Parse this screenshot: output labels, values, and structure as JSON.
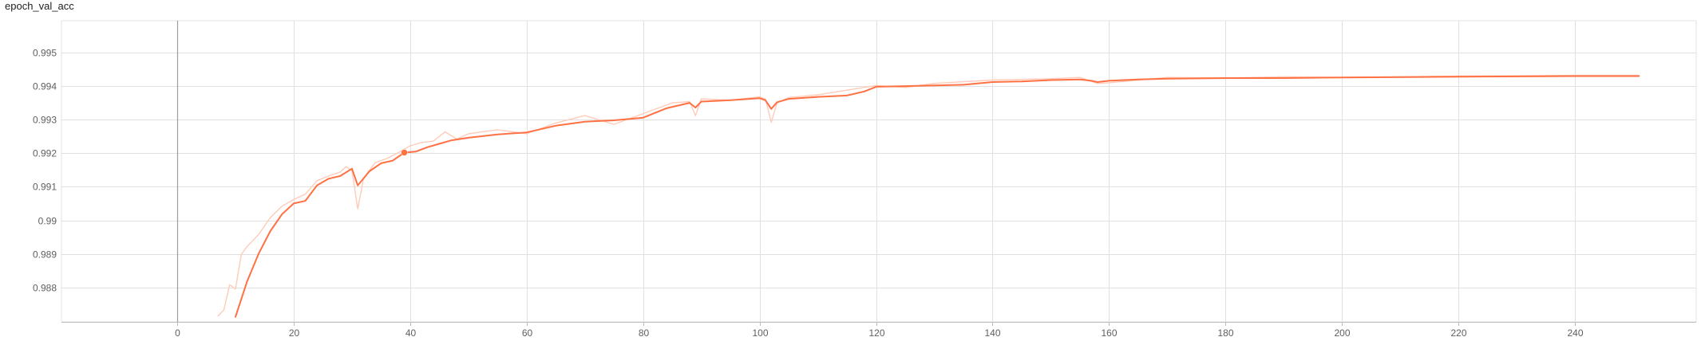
{
  "chart_data": {
    "type": "line",
    "title": "epoch_val_acc",
    "xlabel": "",
    "ylabel": "",
    "xlim": [
      -20,
      260
    ],
    "ylim": [
      0.9871,
      0.9964
    ],
    "x_ticks": [
      0,
      20,
      40,
      60,
      80,
      100,
      120,
      140,
      160,
      180,
      200,
      220,
      240
    ],
    "y_ticks": [
      0.988,
      0.989,
      0.99,
      0.991,
      0.992,
      0.993,
      0.994,
      0.995
    ],
    "x_tick_labels": [
      "0",
      "20",
      "40",
      "60",
      "80",
      "100",
      "120",
      "140",
      "160",
      "180",
      "200",
      "220",
      "240"
    ],
    "y_tick_labels": [
      "0.988",
      "0.989",
      "0.99",
      "0.991",
      "0.992",
      "0.993",
      "0.994",
      "0.995"
    ],
    "grid": true,
    "highlight_point": {
      "x": 39,
      "y": 0.99202
    },
    "series": [
      {
        "role": "smoothed",
        "color": "#ff7043",
        "x": [
          10,
          12,
          14,
          16,
          18,
          20,
          22,
          24,
          26,
          28,
          30,
          31,
          33,
          35,
          37,
          39,
          41,
          43,
          45,
          47,
          50,
          55,
          60,
          65,
          70,
          75,
          80,
          84,
          88,
          89,
          90,
          95,
          100,
          101,
          102,
          103,
          105,
          110,
          115,
          118,
          120,
          125,
          130,
          135,
          140,
          145,
          150,
          155,
          157,
          158,
          160,
          165,
          170,
          180,
          190,
          200,
          220,
          240,
          251
        ],
        "y": [
          0.98712,
          0.98818,
          0.98901,
          0.98968,
          0.99018,
          0.9905,
          0.99058,
          0.99104,
          0.99124,
          0.99132,
          0.99154,
          0.99104,
          0.99146,
          0.9917,
          0.99178,
          0.99202,
          0.99205,
          0.99218,
          0.99228,
          0.99238,
          0.99246,
          0.99256,
          0.99262,
          0.99282,
          0.99294,
          0.99298,
          0.99306,
          0.99334,
          0.9935,
          0.99336,
          0.99354,
          0.99358,
          0.99364,
          0.99358,
          0.99332,
          0.99352,
          0.99362,
          0.99368,
          0.99372,
          0.99384,
          0.99398,
          0.994,
          0.99402,
          0.99404,
          0.99412,
          0.99414,
          0.99418,
          0.9942,
          0.99416,
          0.99412,
          0.99416,
          0.9942,
          0.99422,
          0.99424,
          0.99424,
          0.99426,
          0.99428,
          0.9943,
          0.9943
        ]
      },
      {
        "role": "raw",
        "color": "#ffcbb8",
        "x": [
          7,
          8,
          9,
          10,
          11,
          12,
          14,
          16,
          18,
          20,
          22,
          24,
          26,
          28,
          29,
          30,
          31,
          32,
          34,
          36,
          38,
          40,
          42,
          44,
          46,
          48,
          50,
          55,
          60,
          65,
          70,
          75,
          80,
          85,
          88,
          89,
          90,
          95,
          100,
          101,
          102,
          103,
          105,
          110,
          115,
          120,
          125,
          130,
          140,
          150,
          155,
          158,
          160,
          170,
          180,
          190,
          200,
          220,
          240,
          251
        ],
        "y": [
          0.98715,
          0.98732,
          0.98808,
          0.98795,
          0.98898,
          0.98922,
          0.98958,
          0.99008,
          0.99042,
          0.99062,
          0.99078,
          0.99118,
          0.99132,
          0.99144,
          0.9916,
          0.99148,
          0.99034,
          0.99126,
          0.99172,
          0.99184,
          0.99202,
          0.99222,
          0.99232,
          0.99236,
          0.99264,
          0.99242,
          0.99258,
          0.9927,
          0.99258,
          0.9929,
          0.99312,
          0.99286,
          0.99318,
          0.9935,
          0.99354,
          0.99312,
          0.99362,
          0.99358,
          0.99368,
          0.99362,
          0.99292,
          0.9935,
          0.99366,
          0.99374,
          0.99388,
          0.99402,
          0.99396,
          0.99408,
          0.99418,
          0.99422,
          0.99426,
          0.99408,
          0.9941,
          0.99426,
          0.99424,
          0.99428,
          0.99426,
          0.9943,
          0.99432,
          0.99432
        ]
      }
    ]
  }
}
